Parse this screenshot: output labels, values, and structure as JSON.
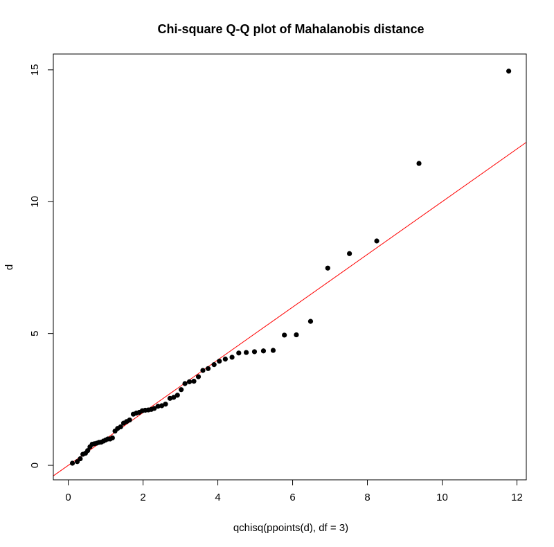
{
  "chart_data": {
    "type": "scatter",
    "title": "Chi-square Q-Q plot of Mahalanobis distance",
    "xlabel": "qchisq(ppoints(d), df = 3)",
    "ylabel": "d",
    "xlim": [
      -0.4,
      12.25
    ],
    "ylim": [
      -0.55,
      15.6
    ],
    "xticks": [
      0,
      2,
      4,
      6,
      8,
      10,
      12
    ],
    "yticks": [
      0,
      5,
      10,
      15
    ],
    "xtick_labels": [
      "0",
      "2",
      "4",
      "6",
      "8",
      "10",
      "12"
    ],
    "ytick_labels": [
      "0",
      "5",
      "10",
      "15"
    ],
    "grid": false,
    "legend": "none",
    "point_color": "#000000",
    "line_color": "#ff0000",
    "reference_line": {
      "intercept": 0,
      "slope": 1
    },
    "points": [
      [
        0.11,
        0.08
      ],
      [
        0.24,
        0.14
      ],
      [
        0.32,
        0.25
      ],
      [
        0.39,
        0.42
      ],
      [
        0.46,
        0.46
      ],
      [
        0.52,
        0.56
      ],
      [
        0.58,
        0.7
      ],
      [
        0.64,
        0.8
      ],
      [
        0.7,
        0.82
      ],
      [
        0.76,
        0.84
      ],
      [
        0.82,
        0.87
      ],
      [
        0.88,
        0.88
      ],
      [
        0.94,
        0.92
      ],
      [
        1.0,
        0.96
      ],
      [
        1.06,
        1.0
      ],
      [
        1.12,
        1.0
      ],
      [
        1.18,
        1.04
      ],
      [
        1.25,
        1.3
      ],
      [
        1.32,
        1.4
      ],
      [
        1.4,
        1.46
      ],
      [
        1.48,
        1.6
      ],
      [
        1.56,
        1.66
      ],
      [
        1.64,
        1.72
      ],
      [
        1.74,
        1.94
      ],
      [
        1.82,
        1.98
      ],
      [
        1.9,
        2.01
      ],
      [
        1.98,
        2.07
      ],
      [
        2.06,
        2.09
      ],
      [
        2.14,
        2.1
      ],
      [
        2.22,
        2.12
      ],
      [
        2.3,
        2.16
      ],
      [
        2.4,
        2.24
      ],
      [
        2.5,
        2.26
      ],
      [
        2.6,
        2.32
      ],
      [
        2.72,
        2.54
      ],
      [
        2.82,
        2.58
      ],
      [
        2.92,
        2.66
      ],
      [
        3.02,
        2.87
      ],
      [
        3.12,
        3.1
      ],
      [
        3.24,
        3.17
      ],
      [
        3.36,
        3.19
      ],
      [
        3.48,
        3.36
      ],
      [
        3.6,
        3.6
      ],
      [
        3.74,
        3.67
      ],
      [
        3.9,
        3.82
      ],
      [
        4.04,
        3.95
      ],
      [
        4.2,
        4.03
      ],
      [
        4.38,
        4.1
      ],
      [
        4.56,
        4.26
      ],
      [
        4.76,
        4.28
      ],
      [
        4.98,
        4.31
      ],
      [
        5.22,
        4.34
      ],
      [
        5.48,
        4.36
      ],
      [
        5.78,
        4.94
      ],
      [
        6.1,
        4.95
      ],
      [
        6.48,
        5.46
      ],
      [
        6.94,
        7.48
      ],
      [
        7.52,
        8.03
      ],
      [
        8.25,
        8.51
      ],
      [
        9.38,
        11.45
      ],
      [
        11.78,
        14.95
      ]
    ]
  }
}
